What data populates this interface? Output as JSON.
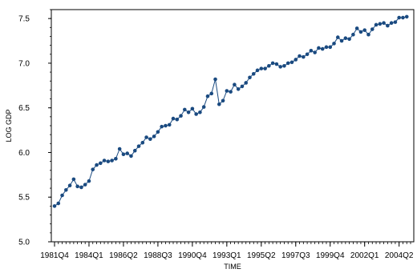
{
  "chart_data": {
    "type": "line",
    "xlabel": "TIME",
    "ylabel": "LOG GDP",
    "ylim": [
      5.0,
      7.6
    ],
    "yticks": [
      "5.0",
      "5.5",
      "6.0",
      "6.5",
      "7.0",
      "7.5"
    ],
    "xticks": [
      "1981Q4",
      "1984Q1",
      "1986Q2",
      "1988Q3",
      "1990Q4",
      "1993Q1",
      "1995Q2",
      "1997Q3",
      "1999Q4",
      "2002Q1",
      "2004Q2"
    ],
    "x_start": "1981Q4",
    "x_end": "2005Q1",
    "grid": false,
    "legend": "none",
    "color": "#1a4a80",
    "series": [
      {
        "values": [
          5.4,
          5.43,
          5.52,
          5.58,
          5.63,
          5.7,
          5.62,
          5.61,
          5.64,
          5.68,
          5.81,
          5.86,
          5.88,
          5.91,
          5.9,
          5.91,
          5.93,
          6.04,
          5.98,
          5.99,
          5.96,
          6.02,
          6.07,
          6.11,
          6.17,
          6.15,
          6.18,
          6.23,
          6.29,
          6.3,
          6.31,
          6.38,
          6.37,
          6.41,
          6.48,
          6.45,
          6.49,
          6.43,
          6.45,
          6.51,
          6.63,
          6.66,
          6.82,
          6.54,
          6.58,
          6.69,
          6.68,
          6.76,
          6.71,
          6.74,
          6.78,
          6.84,
          6.88,
          6.92,
          6.94,
          6.94,
          6.97,
          7.0,
          6.99,
          6.96,
          6.97,
          7.0,
          7.01,
          7.04,
          7.08,
          7.07,
          7.1,
          7.14,
          7.12,
          7.17,
          7.16,
          7.18,
          7.18,
          7.22,
          7.29,
          7.25,
          7.28,
          7.27,
          7.32,
          7.39,
          7.35,
          7.37,
          7.32,
          7.38,
          7.43,
          7.44,
          7.45,
          7.42,
          7.45,
          7.46,
          7.51,
          7.51,
          7.52
        ]
      }
    ]
  }
}
